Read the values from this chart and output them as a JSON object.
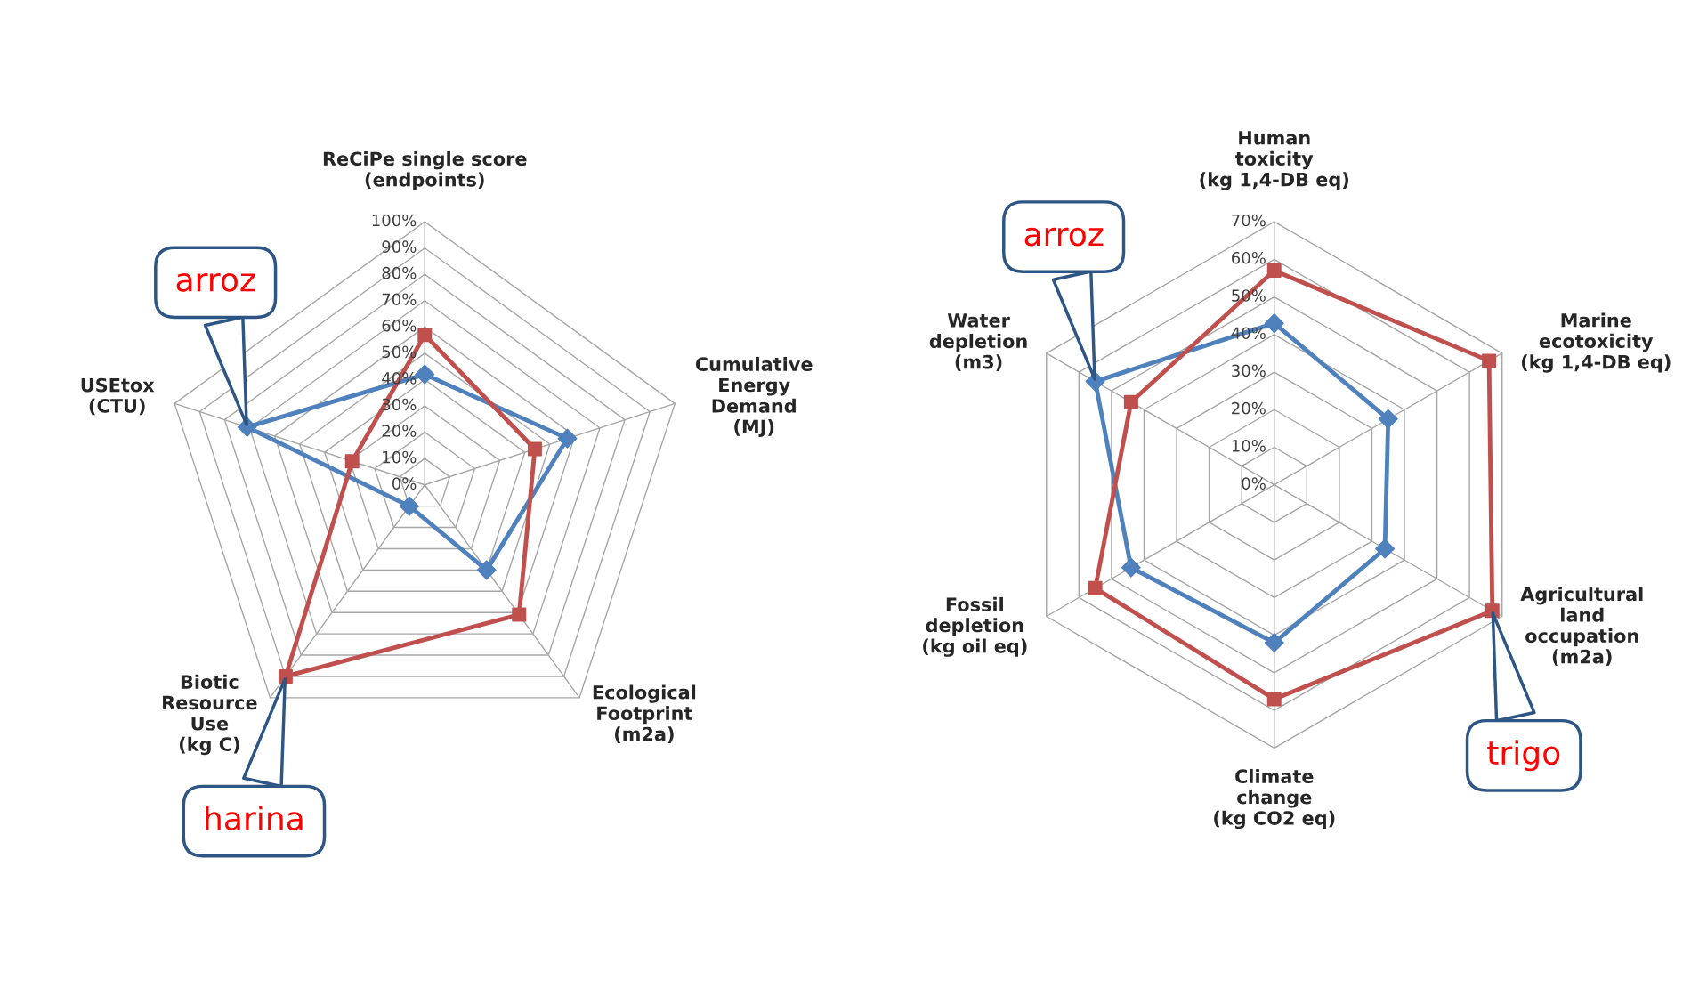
{
  "chart_data": [
    {
      "type": "radar",
      "categories": [
        "ReCiPe single score\n(endpoints)",
        "Cumulative\nEnergy\nDemand\n(MJ)",
        "Ecological\nFootprint\n(m2a)",
        "Biotic\nResource\nUse\n(kg C)",
        "USEtox\n(CTU)"
      ],
      "ylim": [
        0,
        100
      ],
      "yticks": [
        {
          "value": 0,
          "label": "0%"
        },
        {
          "value": 10,
          "label": "10%"
        },
        {
          "value": 20,
          "label": "20%"
        },
        {
          "value": 30,
          "label": "30%"
        },
        {
          "value": 40,
          "label": "40%"
        },
        {
          "value": 50,
          "label": "50%"
        },
        {
          "value": 60,
          "label": "60%"
        },
        {
          "value": 70,
          "label": "70%"
        },
        {
          "value": 80,
          "label": "80%"
        },
        {
          "value": 90,
          "label": "90%"
        },
        {
          "value": 100,
          "label": "100%"
        }
      ],
      "series": [
        {
          "name": "arroz",
          "color": "#4f81bd",
          "marker": "diamond",
          "values": [
            42,
            57,
            40,
            10,
            71
          ]
        },
        {
          "name": "harina",
          "color": "#c0504d",
          "marker": "square",
          "values": [
            57,
            44,
            61,
            90,
            29
          ]
        }
      ]
    },
    {
      "type": "radar",
      "categories": [
        "Human\ntoxicity\n(kg 1,4-DB eq)",
        "Marine\necotoxicity\n(kg 1,4-DB eq)",
        "Agricultural\nland\noccupation\n(m2a)",
        "Climate\nchange\n(kg CO2 eq)",
        "Fossil\ndepletion\n(kg oil eq)",
        "Water\ndepletion\n(m3)"
      ],
      "ylim": [
        0,
        70
      ],
      "yticks": [
        {
          "value": 0,
          "label": "0%"
        },
        {
          "value": 10,
          "label": "10%"
        },
        {
          "value": 20,
          "label": "20%"
        },
        {
          "value": 30,
          "label": "30%"
        },
        {
          "value": 40,
          "label": "40%"
        },
        {
          "value": 50,
          "label": "50%"
        },
        {
          "value": 60,
          "label": "60%"
        },
        {
          "value": 70,
          "label": "70%"
        }
      ],
      "series": [
        {
          "name": "arroz",
          "color": "#4f81bd",
          "marker": "diamond",
          "values": [
            43,
            35,
            34,
            42,
            44,
            55
          ]
        },
        {
          "name": "trigo",
          "color": "#c0504d",
          "marker": "square",
          "values": [
            57,
            66,
            67,
            57,
            55,
            44
          ]
        }
      ]
    }
  ]
}
